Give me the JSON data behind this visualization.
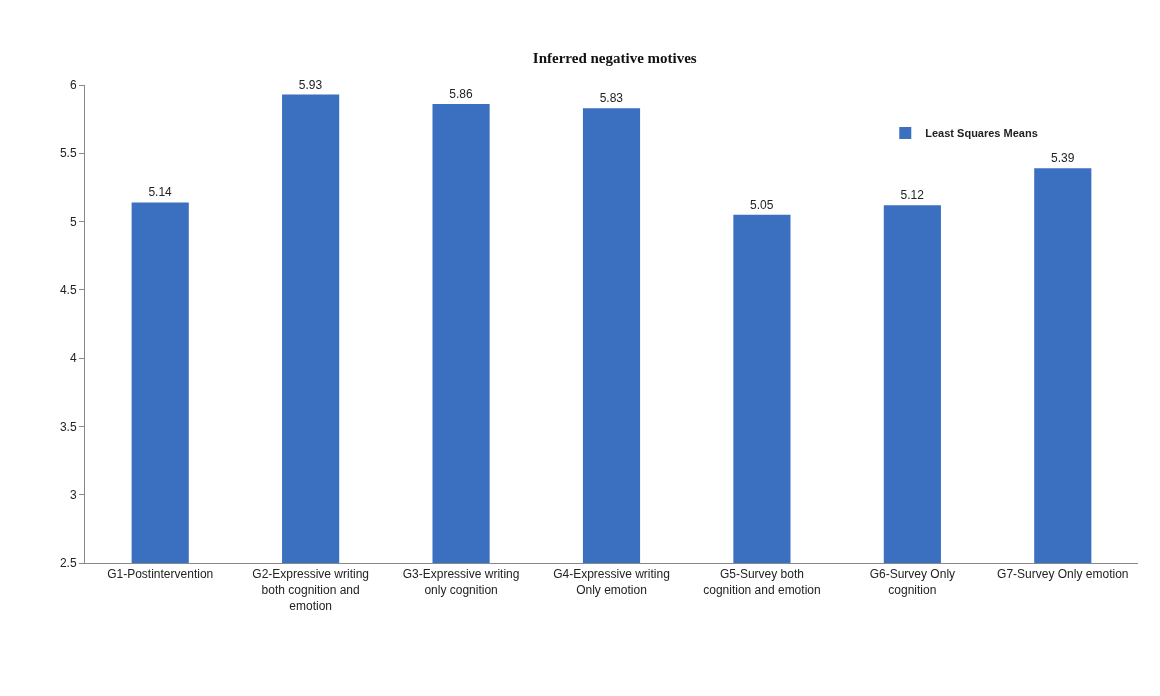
{
  "chart_data": {
    "type": "bar",
    "title": "Inferred negative motives",
    "categories": [
      "G1-Postintervention",
      "G2-Expressive writing both cognition and emotion",
      "G3-Expressive writing only cognition",
      "G4-Expressive writing Only emotion",
      "G5-Survey both cognition and emotion",
      "G6-Survey Only cognition",
      "G7-Survey Only emotion"
    ],
    "series": [
      {
        "name": "Least Squares Means",
        "color": "#3b6fc0",
        "values": [
          5.14,
          5.93,
          5.86,
          5.83,
          5.05,
          5.12,
          5.39
        ]
      }
    ],
    "ylim": [
      2.5,
      6
    ],
    "yticks": [
      2.5,
      3,
      3.5,
      4,
      4.5,
      5,
      5.5,
      6
    ],
    "grid": false,
    "legend": "top right",
    "data_labels": true
  }
}
